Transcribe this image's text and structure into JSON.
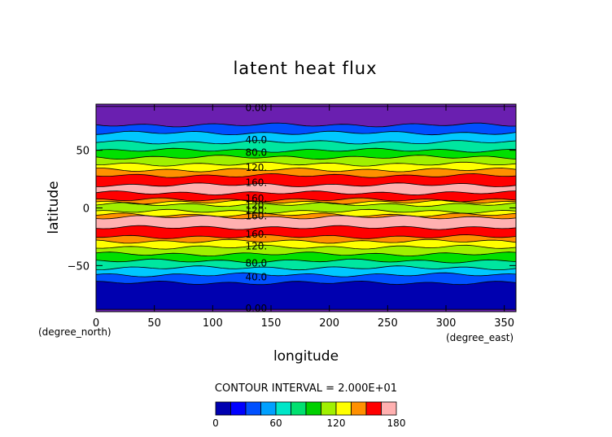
{
  "chart_data": {
    "type": "heatmap",
    "title": "latent heat flux",
    "xlabel": "longitude",
    "ylabel": "latitude",
    "x_unit": "(degree_east)",
    "y_unit": "(degree_north)",
    "xlim": [
      0,
      360
    ],
    "ylim": [
      -90,
      90
    ],
    "x_ticks": [
      "0",
      "50",
      "100",
      "150",
      "200",
      "250",
      "300",
      "350"
    ],
    "x_tick_values": [
      0,
      50,
      100,
      150,
      200,
      250,
      300,
      350
    ],
    "y_ticks": [
      "50",
      "0",
      "−50"
    ],
    "y_tick_values": [
      50,
      0,
      -50
    ],
    "contour_interval_text": "CONTOUR INTERVAL = 2.000E+01",
    "levels": [
      0,
      20,
      40,
      60,
      80,
      100,
      120,
      140,
      160,
      180
    ],
    "colorbar_ticks": [
      "0",
      "60",
      "120",
      "180"
    ],
    "colorbar_tick_values": [
      0,
      60,
      120,
      180
    ],
    "colors": [
      "#0000b0",
      "#0050ff",
      "#00c8ff",
      "#00e6a0",
      "#00e000",
      "#a0f000",
      "#ffff00",
      "#ff9000",
      "#ff0000",
      "#ffb0b0"
    ],
    "latitude_bands": [
      {
        "lat_from": 90,
        "lat_to": 88,
        "level": 0
      },
      {
        "lat_from": 88,
        "lat_to": 72,
        "level": 0
      },
      {
        "lat_from": 72,
        "lat_to": 65,
        "level": 1
      },
      {
        "lat_from": 65,
        "lat_to": 57,
        "level": 2
      },
      {
        "lat_from": 57,
        "lat_to": 50,
        "level": 3
      },
      {
        "lat_from": 50,
        "lat_to": 44,
        "level": 4
      },
      {
        "lat_from": 44,
        "lat_to": 38,
        "level": 5
      },
      {
        "lat_from": 38,
        "lat_to": 33,
        "level": 6
      },
      {
        "lat_from": 33,
        "lat_to": 28,
        "level": 7
      },
      {
        "lat_from": 28,
        "lat_to": 20,
        "level": 8
      },
      {
        "lat_from": 20,
        "lat_to": 13,
        "level": 9
      },
      {
        "lat_from": 13,
        "lat_to": 7,
        "level": 8
      },
      {
        "lat_from": 7,
        "lat_to": 5,
        "level": 7
      },
      {
        "lat_from": 5,
        "lat_to": 3,
        "level": 6
      },
      {
        "lat_from": 3,
        "lat_to": -3,
        "level": 5
      },
      {
        "lat_from": -3,
        "lat_to": -6,
        "level": 6
      },
      {
        "lat_from": -6,
        "lat_to": -8,
        "level": 7
      },
      {
        "lat_from": -8,
        "lat_to": -17,
        "level": 9
      },
      {
        "lat_from": -17,
        "lat_to": -25,
        "level": 8
      },
      {
        "lat_from": -25,
        "lat_to": -29,
        "level": 7
      },
      {
        "lat_from": -29,
        "lat_to": -34,
        "level": 6
      },
      {
        "lat_from": -34,
        "lat_to": -40,
        "level": 5
      },
      {
        "lat_from": -40,
        "lat_to": -46,
        "level": 4
      },
      {
        "lat_from": -46,
        "lat_to": -52,
        "level": 3
      },
      {
        "lat_from": -52,
        "lat_to": -58,
        "level": 2
      },
      {
        "lat_from": -58,
        "lat_to": -65,
        "level": 1
      },
      {
        "lat_from": -65,
        "lat_to": -88,
        "level": 0
      },
      {
        "lat_from": -88,
        "lat_to": -90,
        "level": 0
      }
    ],
    "contour_labels": [
      {
        "text": "0.00",
        "lon": 128,
        "lat": 87
      },
      {
        "text": "40.0",
        "lon": 128,
        "lat": 59
      },
      {
        "text": "80.0",
        "lon": 128,
        "lat": 48
      },
      {
        "text": "120.",
        "lon": 128,
        "lat": 35
      },
      {
        "text": "160.",
        "lon": 128,
        "lat": 22
      },
      {
        "text": "160.",
        "lon": 128,
        "lat": 8
      },
      {
        "text": "120.",
        "lon": 128,
        "lat": 2
      },
      {
        "text": "120.",
        "lon": 128,
        "lat": -2
      },
      {
        "text": "160.",
        "lon": 128,
        "lat": -7
      },
      {
        "text": "160.",
        "lon": 128,
        "lat": -23
      },
      {
        "text": "120.",
        "lon": 128,
        "lat": -33
      },
      {
        "text": "80.0",
        "lon": 128,
        "lat": -48
      },
      {
        "text": "40.0",
        "lon": 128,
        "lat": -60
      },
      {
        "text": "0.00",
        "lon": 128,
        "lat": -87
      }
    ]
  }
}
